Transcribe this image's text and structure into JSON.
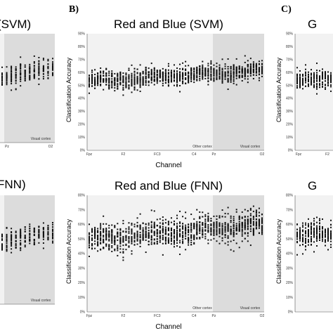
{
  "panel_letters": [
    "B)",
    "C)"
  ],
  "chart_data": [
    {
      "type": "scatter",
      "panel": "A-top",
      "title": "(SVM)",
      "ylabel": "",
      "xlabel": "",
      "region_labels": [
        "",
        "Visual cortex"
      ],
      "x_ticks": [
        "Pz",
        "O2"
      ],
      "ylim": [
        0,
        90
      ],
      "mean_range": [
        52,
        62
      ],
      "spread": 7,
      "points_per_channel": 20
    },
    {
      "type": "scatter",
      "panel": "B-top",
      "title": "Red and Blue (SVM)",
      "ylabel": "Classification Accuracy",
      "xlabel": "Channel",
      "y_ticks": [
        "0%",
        "10%",
        "20%",
        "30%",
        "40%",
        "50%",
        "60%",
        "70%",
        "80%",
        "90%"
      ],
      "x_ticks": [
        "Fpz",
        "F2",
        "FC3",
        "C4",
        "Pz",
        "O2"
      ],
      "region_labels": [
        "Other cortex",
        "Visual cortex"
      ],
      "ylim": [
        0,
        90
      ],
      "mean_range": [
        53,
        62
      ],
      "spread": 6,
      "points_per_channel": 20
    },
    {
      "type": "scatter",
      "panel": "C-top",
      "title": "G",
      "ylabel": "Classification Accuracy",
      "y_ticks": [
        "0%",
        "10%",
        "20%",
        "30%",
        "40%",
        "50%",
        "60%",
        "70%",
        "80%",
        "90%"
      ],
      "x_ticks": [
        "Fpz",
        "F2"
      ],
      "ylim": [
        0,
        90
      ],
      "mean_range": [
        53,
        56
      ],
      "spread": 6,
      "points_per_channel": 20
    },
    {
      "type": "scatter",
      "panel": "A-bottom",
      "title": "FNN)",
      "region_labels": [
        "",
        "Visual cortex"
      ],
      "ylim": [
        0,
        90
      ],
      "mean_range": [
        50,
        60
      ],
      "spread": 8,
      "points_per_channel": 20
    },
    {
      "type": "scatter",
      "panel": "B-bottom",
      "title": "Red and Blue (FNN)",
      "ylabel": "Classification Accuracy",
      "xlabel": "Channel",
      "y_ticks": [
        "0%",
        "10%",
        "20%",
        "30%",
        "40%",
        "50%",
        "60%",
        "70%",
        "80%"
      ],
      "x_ticks": [
        "Fpz",
        "F2",
        "FC3",
        "C4",
        "Pz",
        "O2"
      ],
      "region_labels": [
        "Other cortex",
        "Visual cortex"
      ],
      "ylim": [
        0,
        80
      ],
      "mean_range": [
        50,
        60
      ],
      "spread": 8,
      "points_per_channel": 20
    },
    {
      "type": "scatter",
      "panel": "C-bottom",
      "title": "G",
      "ylabel": "Classification Accuracy",
      "y_ticks": [
        "0%",
        "10%",
        "20%",
        "30%",
        "40%",
        "50%",
        "60%",
        "70%",
        "80%"
      ],
      "ylim": [
        0,
        80
      ],
      "mean_range": [
        52,
        55
      ],
      "spread": 7,
      "points_per_channel": 20
    }
  ],
  "colors": {
    "panel_bg": "#f2f2f2",
    "visual_bg": "#dcdcdc",
    "dot": "#111111",
    "axis": "#555555"
  }
}
